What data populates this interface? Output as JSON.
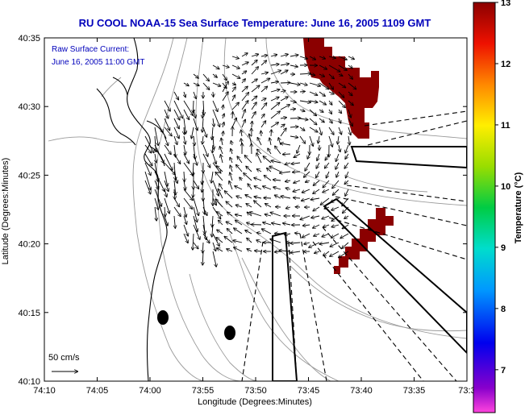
{
  "title": "RU COOL  NOAA-15  Sea Surface Temperature:  June 16, 2005 1109 GMT",
  "legend": {
    "line1": "Raw Surface Current:",
    "line2": "June 16, 2005 11:00 GMT",
    "scale_label": "50 cm/s"
  },
  "axes": {
    "xlabel": "Longitude (Degrees:Minutes)",
    "ylabel": "Latitude (Degrees:Minutes)",
    "xticks": [
      "74:10",
      "74:05",
      "74:00",
      "73:55",
      "73:50",
      "73:45",
      "73:40",
      "73:35",
      "73:3"
    ],
    "yticks": [
      "40:35",
      "40:30",
      "40:25",
      "40:20",
      "40:15",
      "40:10"
    ]
  },
  "colorbar": {
    "label": "Temperature (°C)",
    "ticks": [
      "13",
      "12",
      "11",
      "10",
      "9",
      "8",
      "7"
    ],
    "min": 6.3,
    "max": 13
  },
  "colors": {
    "title": "#0000bb",
    "sst_patch": "#8b0000",
    "coast": "#000000",
    "bathymetry": "#9a9a9a"
  }
}
